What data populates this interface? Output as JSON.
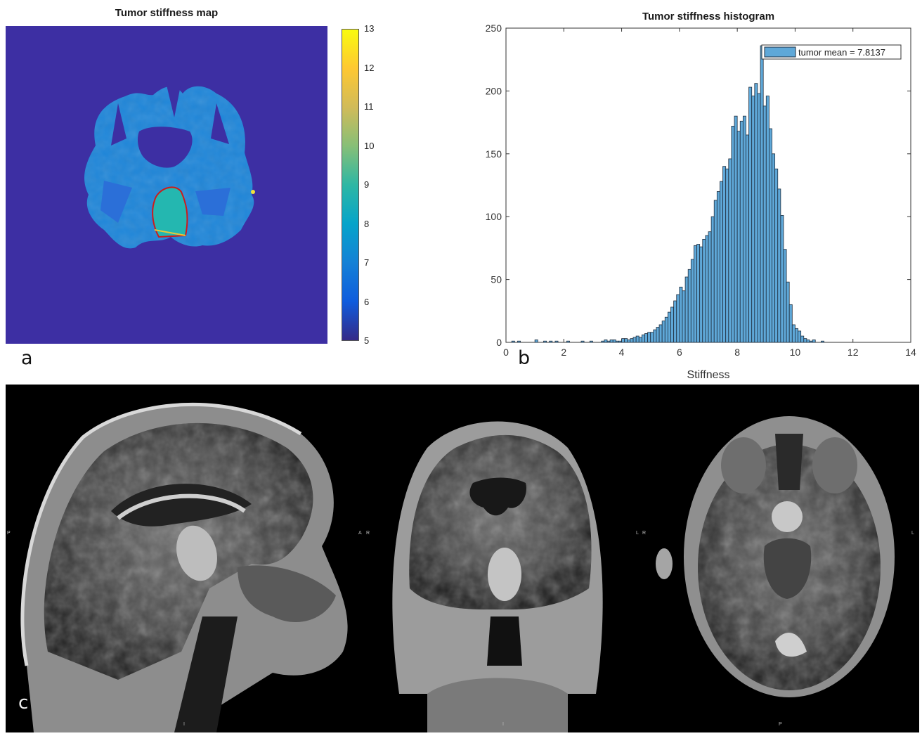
{
  "panel_a": {
    "title": "Tumor stiffness map",
    "letter": "a",
    "colorbar": {
      "ticks": [
        "13",
        "12",
        "11",
        "10",
        "9",
        "8",
        "7",
        "6",
        "5"
      ],
      "min": 5,
      "max": 13,
      "colors": [
        "#352a87",
        "#0f5cdd",
        "#1481d6",
        "#06a4ca",
        "#2eb7a4",
        "#87bf77",
        "#d1bb59",
        "#fec832",
        "#f9fb0e"
      ]
    }
  },
  "panel_b": {
    "letter": "b"
  },
  "panel_c": {
    "letter": "c",
    "orientation_labels": {
      "sagittal_left": "P",
      "sagittal_right": "A",
      "sagittal_bottom": "I",
      "coronal_left": "R",
      "coronal_right": "L",
      "coronal_bottom": "I",
      "axial_left": "R",
      "axial_right": "L",
      "axial_bottom": "P"
    }
  },
  "chart_data": {
    "type": "bar",
    "title": "Tumor stiffness histogram",
    "xlabel": "Stiffness",
    "ylabel": "",
    "xlim": [
      0,
      14
    ],
    "ylim": [
      0,
      250
    ],
    "xticks": [
      0,
      2,
      4,
      6,
      8,
      10,
      12,
      14
    ],
    "yticks": [
      0,
      50,
      100,
      150,
      200,
      250
    ],
    "bar_color": "#5fa8d8",
    "edge_color": "#1f2d3d",
    "legend": {
      "label": "tumor mean = 7.8137",
      "position": "top-right"
    },
    "bin_width": 0.1,
    "bin_centers": [
      0.25,
      0.35,
      0.45,
      0.55,
      0.65,
      0.75,
      0.85,
      0.95,
      1.05,
      1.15,
      1.25,
      1.35,
      1.45,
      1.55,
      1.65,
      1.75,
      1.85,
      1.95,
      2.05,
      2.15,
      2.25,
      2.35,
      2.45,
      2.55,
      2.65,
      2.75,
      2.85,
      2.95,
      3.05,
      3.15,
      3.25,
      3.35,
      3.45,
      3.55,
      3.65,
      3.75,
      3.85,
      3.95,
      4.05,
      4.15,
      4.25,
      4.35,
      4.45,
      4.55,
      4.65,
      4.75,
      4.85,
      4.95,
      5.05,
      5.15,
      5.25,
      5.35,
      5.45,
      5.55,
      5.65,
      5.75,
      5.85,
      5.95,
      6.05,
      6.15,
      6.25,
      6.35,
      6.45,
      6.55,
      6.65,
      6.75,
      6.85,
      6.95,
      7.05,
      7.15,
      7.25,
      7.35,
      7.45,
      7.55,
      7.65,
      7.75,
      7.85,
      7.95,
      8.05,
      8.15,
      8.25,
      8.35,
      8.45,
      8.55,
      8.65,
      8.75,
      8.85,
      8.95,
      9.05,
      9.15,
      9.25,
      9.35,
      9.45,
      9.55,
      9.65,
      9.75,
      9.85,
      9.95,
      10.05,
      10.15,
      10.25,
      10.35,
      10.45,
      10.55,
      10.65,
      10.75,
      10.85,
      10.95,
      11.05,
      11.15,
      11.25,
      11.35,
      11.45
    ],
    "values": [
      1,
      0,
      1,
      0,
      0,
      0,
      0,
      0,
      2,
      0,
      0,
      1,
      0,
      1,
      0,
      1,
      0,
      0,
      0,
      1,
      0,
      0,
      0,
      0,
      1,
      0,
      0,
      1,
      0,
      0,
      0,
      1,
      2,
      1,
      2,
      2,
      1,
      1,
      3,
      3,
      2,
      3,
      4,
      5,
      4,
      6,
      7,
      8,
      8,
      10,
      12,
      14,
      17,
      20,
      24,
      28,
      33,
      38,
      44,
      41,
      52,
      58,
      66,
      77,
      78,
      76,
      82,
      85,
      88,
      100,
      113,
      120,
      128,
      140,
      138,
      146,
      172,
      180,
      168,
      176,
      180,
      165,
      203,
      196,
      206,
      198,
      236,
      188,
      196,
      170,
      150,
      138,
      122,
      101,
      74,
      48,
      30,
      14,
      11,
      9,
      5,
      3,
      2,
      1,
      2,
      0,
      0,
      1,
      0,
      0,
      0,
      0,
      0,
      0,
      1
    ]
  }
}
